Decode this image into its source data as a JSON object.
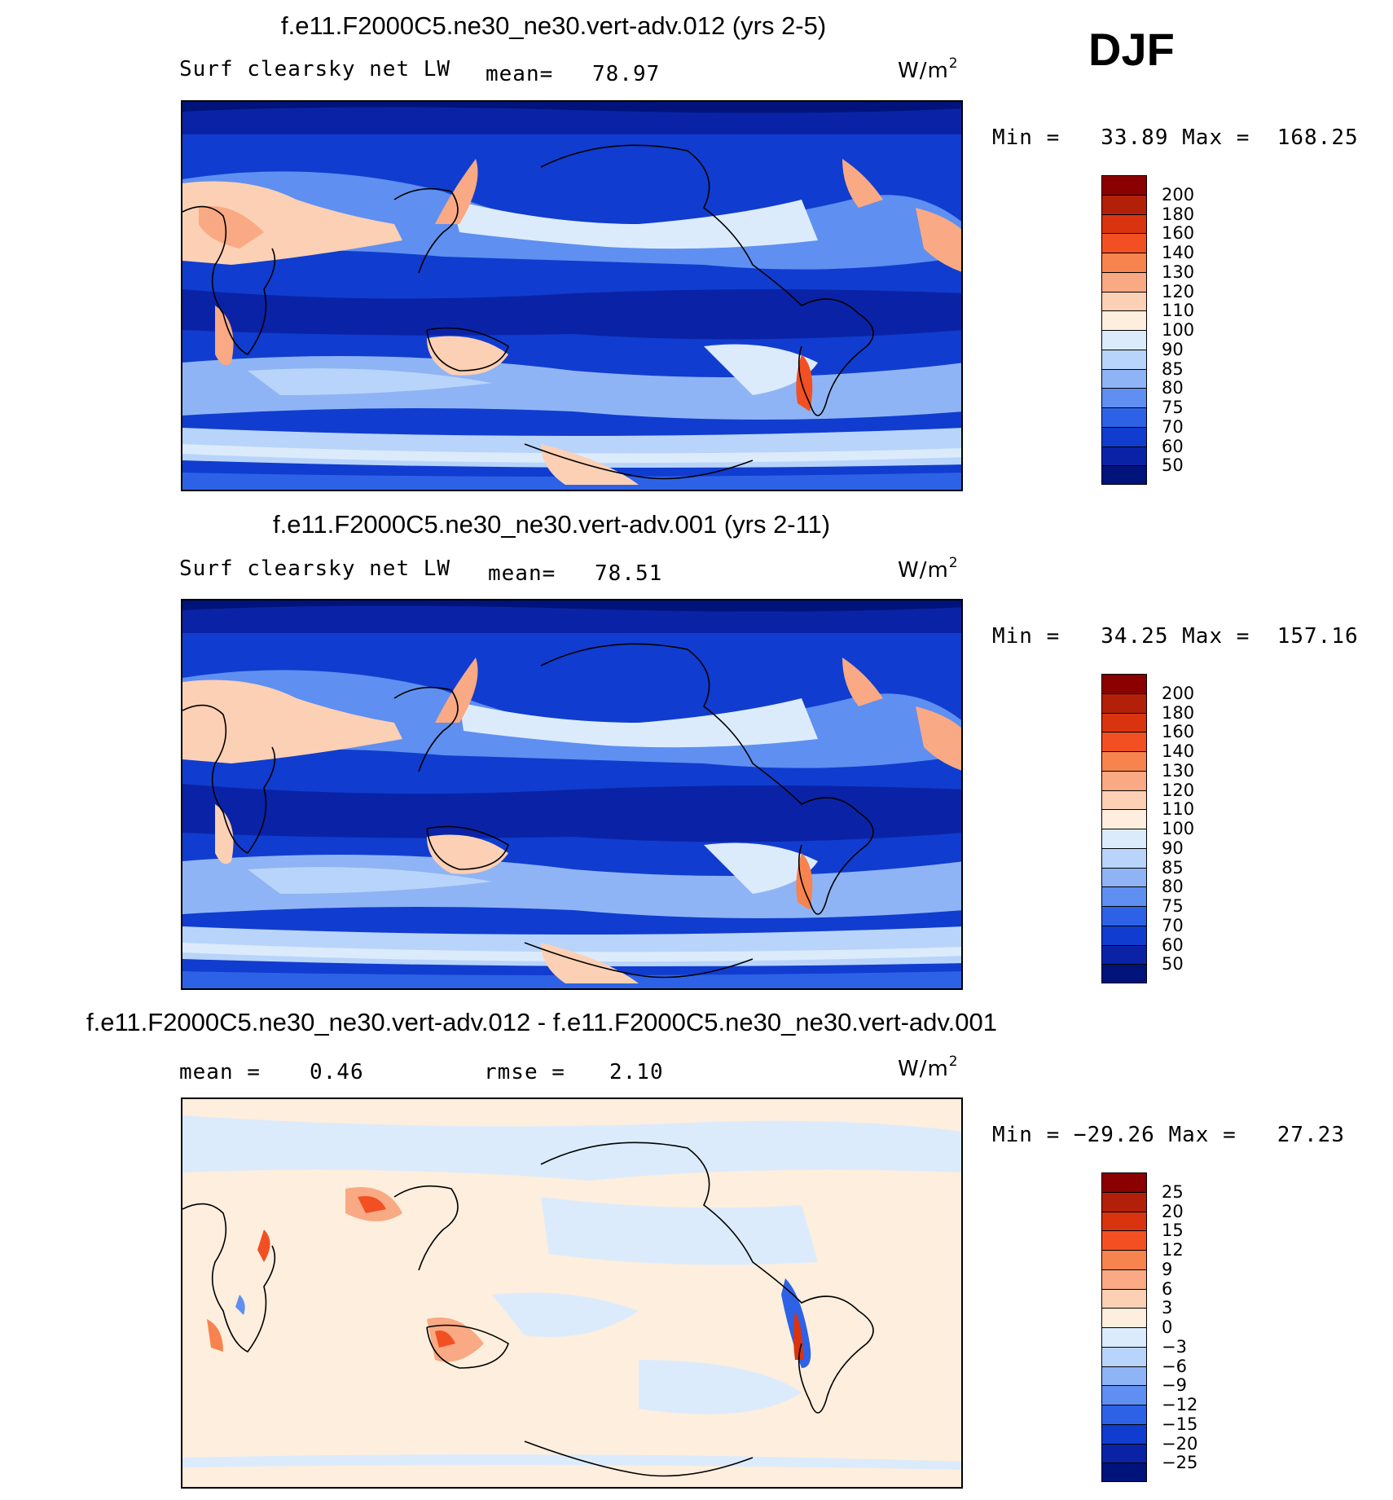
{
  "season": "DJF",
  "panels": [
    {
      "title": "f.e11.F2000C5.ne30_ne30.vert-adv.012 (yrs 2-5)",
      "variable": "Surf clearsky net LW",
      "stat1_label": "mean=",
      "stat1_value": "78.97",
      "units": "W/m",
      "units_sup": "2",
      "minmax": "Min =   33.89 Max =  168.25",
      "colorbar": {
        "labels": [
          "200",
          "180",
          "160",
          "140",
          "130",
          "120",
          "110",
          "100",
          "90",
          "85",
          "80",
          "75",
          "70",
          "60",
          "50"
        ],
        "colors": [
          "#8B0000",
          "#B3200A",
          "#D9340F",
          "#F25022",
          "#F7834F",
          "#F9A983",
          "#FCD0B4",
          "#FDEEDD",
          "#DCEBFC",
          "#B9D4FA",
          "#8FB4F5",
          "#5F8FF0",
          "#2E62E6",
          "#103DCF",
          "#0A23A6",
          "#00137A"
        ]
      }
    },
    {
      "title": "f.e11.F2000C5.ne30_ne30.vert-adv.001 (yrs 2-11)",
      "variable": "Surf clearsky net LW",
      "stat1_label": "mean=",
      "stat1_value": "78.51",
      "units": "W/m",
      "units_sup": "2",
      "minmax": "Min =   34.25 Max =  157.16",
      "colorbar": {
        "labels": [
          "200",
          "180",
          "160",
          "140",
          "130",
          "120",
          "110",
          "100",
          "90",
          "85",
          "80",
          "75",
          "70",
          "60",
          "50"
        ],
        "colors": [
          "#8B0000",
          "#B3200A",
          "#D9340F",
          "#F25022",
          "#F7834F",
          "#F9A983",
          "#FCD0B4",
          "#FDEEDD",
          "#DCEBFC",
          "#B9D4FA",
          "#8FB4F5",
          "#5F8FF0",
          "#2E62E6",
          "#103DCF",
          "#0A23A6",
          "#00137A"
        ]
      }
    },
    {
      "title": "f.e11.F2000C5.ne30_ne30.vert-adv.012 - f.e11.F2000C5.ne30_ne30.vert-adv.001",
      "variable": "",
      "stat1_label": "mean =",
      "stat1_value": "0.46",
      "stat2_label": "rmse =",
      "stat2_value": "2.10",
      "units": "W/m",
      "units_sup": "2",
      "minmax": "Min = −29.26 Max =   27.23",
      "colorbar": {
        "labels": [
          "25",
          "20",
          "15",
          "12",
          "9",
          "6",
          "3",
          "0",
          "−3",
          "−6",
          "−9",
          "−12",
          "−15",
          "−20",
          "−25"
        ],
        "colors": [
          "#8B0000",
          "#B3200A",
          "#D9340F",
          "#F25022",
          "#F7834F",
          "#F9A983",
          "#FCD0B4",
          "#FDEEDD",
          "#DCEBFC",
          "#B9D4FA",
          "#8FB4F5",
          "#5F8FF0",
          "#2E62E6",
          "#103DCF",
          "#0A23A6",
          "#00137A"
        ]
      }
    }
  ],
  "chart_data": [
    {
      "type": "heatmap",
      "title": "f.e11.F2000C5.ne30_ne30.vert-adv.012 (yrs 2-5)",
      "variable": "Surf clearsky net LW",
      "units": "W/m2",
      "season": "DJF",
      "mean": 78.97,
      "min": 33.89,
      "max": 168.25,
      "contour_levels": [
        50,
        60,
        70,
        75,
        80,
        85,
        90,
        100,
        110,
        120,
        130,
        140,
        160,
        180,
        200
      ],
      "colormap": "blue-white-red"
    },
    {
      "type": "heatmap",
      "title": "f.e11.F2000C5.ne30_ne30.vert-adv.001 (yrs 2-11)",
      "variable": "Surf clearsky net LW",
      "units": "W/m2",
      "season": "DJF",
      "mean": 78.51,
      "min": 34.25,
      "max": 157.16,
      "contour_levels": [
        50,
        60,
        70,
        75,
        80,
        85,
        90,
        100,
        110,
        120,
        130,
        140,
        160,
        180,
        200
      ],
      "colormap": "blue-white-red"
    },
    {
      "type": "heatmap",
      "title": "f.e11.F2000C5.ne30_ne30.vert-adv.012 - f.e11.F2000C5.ne30_ne30.vert-adv.001",
      "units": "W/m2",
      "season": "DJF",
      "mean": 0.46,
      "rmse": 2.1,
      "min": -29.26,
      "max": 27.23,
      "contour_levels": [
        -25,
        -20,
        -15,
        -12,
        -9,
        -6,
        -3,
        0,
        3,
        6,
        9,
        12,
        15,
        20,
        25
      ],
      "colormap": "blue-white-red"
    }
  ]
}
